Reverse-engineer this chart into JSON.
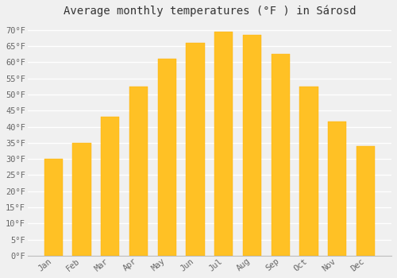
{
  "title": "Average monthly temperatures (°F ) in Sárosd",
  "months": [
    "Jan",
    "Feb",
    "Mar",
    "Apr",
    "May",
    "Jun",
    "Jul",
    "Aug",
    "Sep",
    "Oct",
    "Nov",
    "Dec"
  ],
  "values": [
    30,
    35,
    43,
    52.5,
    61,
    66,
    69.5,
    68.5,
    62.5,
    52.5,
    41.5,
    34
  ],
  "bar_color_left": "#FFC125",
  "bar_color_right": "#FFB000",
  "background_color": "#f0f0f0",
  "grid_color": "#ffffff",
  "text_color": "#666666",
  "title_color": "#333333",
  "ylim": [
    0,
    72
  ],
  "yticks": [
    0,
    5,
    10,
    15,
    20,
    25,
    30,
    35,
    40,
    45,
    50,
    55,
    60,
    65,
    70
  ],
  "title_fontsize": 10,
  "tick_fontsize": 7.5,
  "bar_width": 0.65
}
